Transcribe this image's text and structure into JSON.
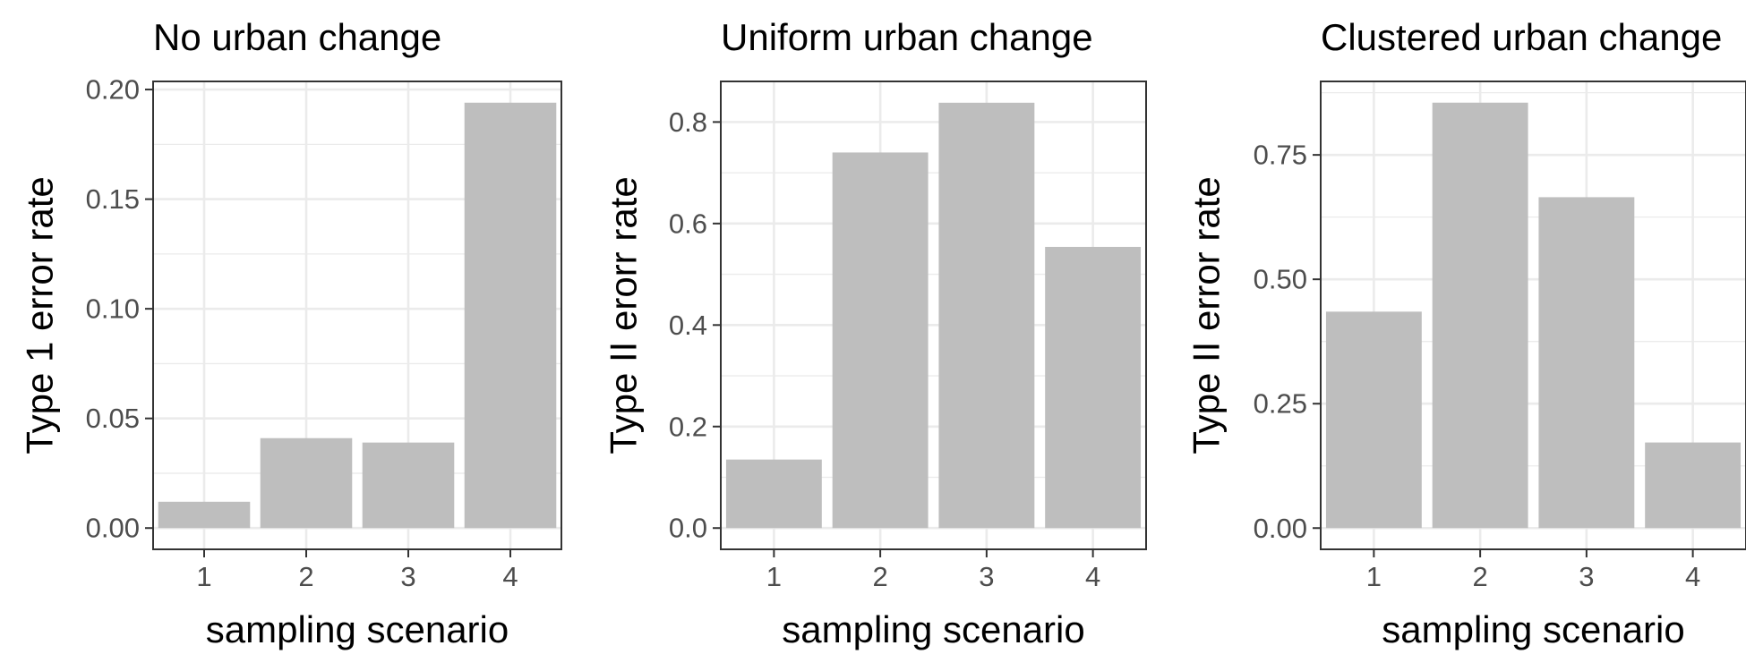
{
  "chart_data": [
    {
      "type": "bar",
      "title": "No urban change",
      "xlabel": "sampling scenario",
      "ylabel": "Type 1 error rate",
      "categories": [
        "1",
        "2",
        "3",
        "4"
      ],
      "values": [
        0.012,
        0.041,
        0.039,
        0.194
      ],
      "ylim": [
        -0.0097,
        0.2037
      ],
      "yticks": [
        0.0,
        0.05,
        0.1,
        0.15,
        0.2
      ],
      "ytick_labels": [
        "0.00",
        "0.05",
        "0.10",
        "0.15",
        "0.20"
      ],
      "grid": true,
      "bar_color": "#bebebe"
    },
    {
      "type": "bar",
      "title": "Uniform urban change",
      "xlabel": "sampling scenario",
      "ylabel": "Type II erorr rate",
      "categories": [
        "1",
        "2",
        "3",
        "4"
      ],
      "values": [
        0.135,
        0.74,
        0.838,
        0.554
      ],
      "ylim": [
        -0.0419,
        0.88
      ],
      "yticks": [
        0.0,
        0.2,
        0.4,
        0.6,
        0.8
      ],
      "ytick_labels": [
        "0.0",
        "0.2",
        "0.4",
        "0.6",
        "0.8"
      ],
      "grid": true,
      "bar_color": "#bebebe"
    },
    {
      "type": "bar",
      "title": "Clustered urban change",
      "xlabel": "sampling scenario",
      "ylabel": "Type II error rate",
      "categories": [
        "1",
        "2",
        "3",
        "4"
      ],
      "values": [
        0.435,
        0.855,
        0.665,
        0.172
      ],
      "ylim": [
        -0.0427,
        0.8977
      ],
      "yticks": [
        0.0,
        0.25,
        0.5,
        0.75
      ],
      "ytick_labels": [
        "0.00",
        "0.25",
        "0.50",
        "0.75"
      ],
      "grid": true,
      "bar_color": "#bebebe"
    }
  ]
}
